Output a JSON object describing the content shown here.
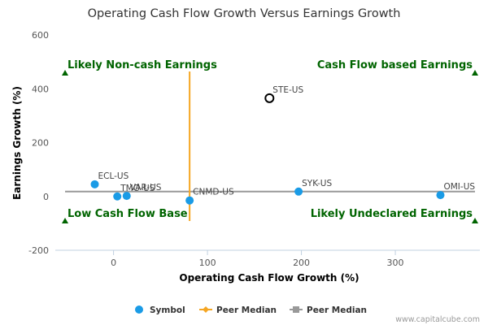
{
  "chart_data": {
    "type": "scatter",
    "title": "Operating Cash Flow Growth Versus Earnings Growth",
    "xlabel": "Operating Cash Flow Growth (%)",
    "ylabel": "Earnings Growth (%)",
    "xlim": [
      -62,
      390
    ],
    "ylim": [
      -200,
      600
    ],
    "x_ticks": [
      "0",
      "100",
      "200",
      "300"
    ],
    "x_tick_values": [
      0,
      100,
      200,
      300
    ],
    "y_ticks": [
      "600",
      "400",
      "200",
      "0",
      "-200"
    ],
    "y_tick_values": [
      600,
      400,
      200,
      0,
      -200
    ],
    "grid": false,
    "points": [
      {
        "label": "ECL-US",
        "x": -20,
        "y": 45,
        "style": "filled"
      },
      {
        "label": "TMO-US",
        "x": 4,
        "y": 0,
        "style": "filled"
      },
      {
        "label": "VAR-US",
        "x": 14,
        "y": 2,
        "style": "filled"
      },
      {
        "label": "CNMD-US",
        "x": 81,
        "y": -15,
        "style": "filled"
      },
      {
        "label": "SYK-US",
        "x": 197,
        "y": 18,
        "style": "filled"
      },
      {
        "label": "OMI-US",
        "x": 348,
        "y": 5,
        "style": "filled"
      },
      {
        "label": "STE-US",
        "x": 166,
        "y": 365,
        "style": "hollow"
      }
    ],
    "peer_median_x": 81,
    "peer_median_y": 18,
    "quadrants": {
      "top_left": "Likely Non-cash Earnings",
      "top_right": "Cash Flow based Earnings",
      "bottom_left": "Low Cash Flow Base",
      "bottom_right": "Likely Undeclared Earnings"
    },
    "legend": [
      "Symbol",
      "Peer Median",
      "Peer Median"
    ],
    "legend_position": "bottom"
  },
  "footer": {
    "credit": "www.capitalcube.com"
  },
  "colors": {
    "point": "#1a9be6",
    "peer_median_vertical": "#f5a623",
    "peer_median_horizontal": "#999999",
    "quadrant_text": "#006400",
    "axis": "#c0d0e0"
  }
}
